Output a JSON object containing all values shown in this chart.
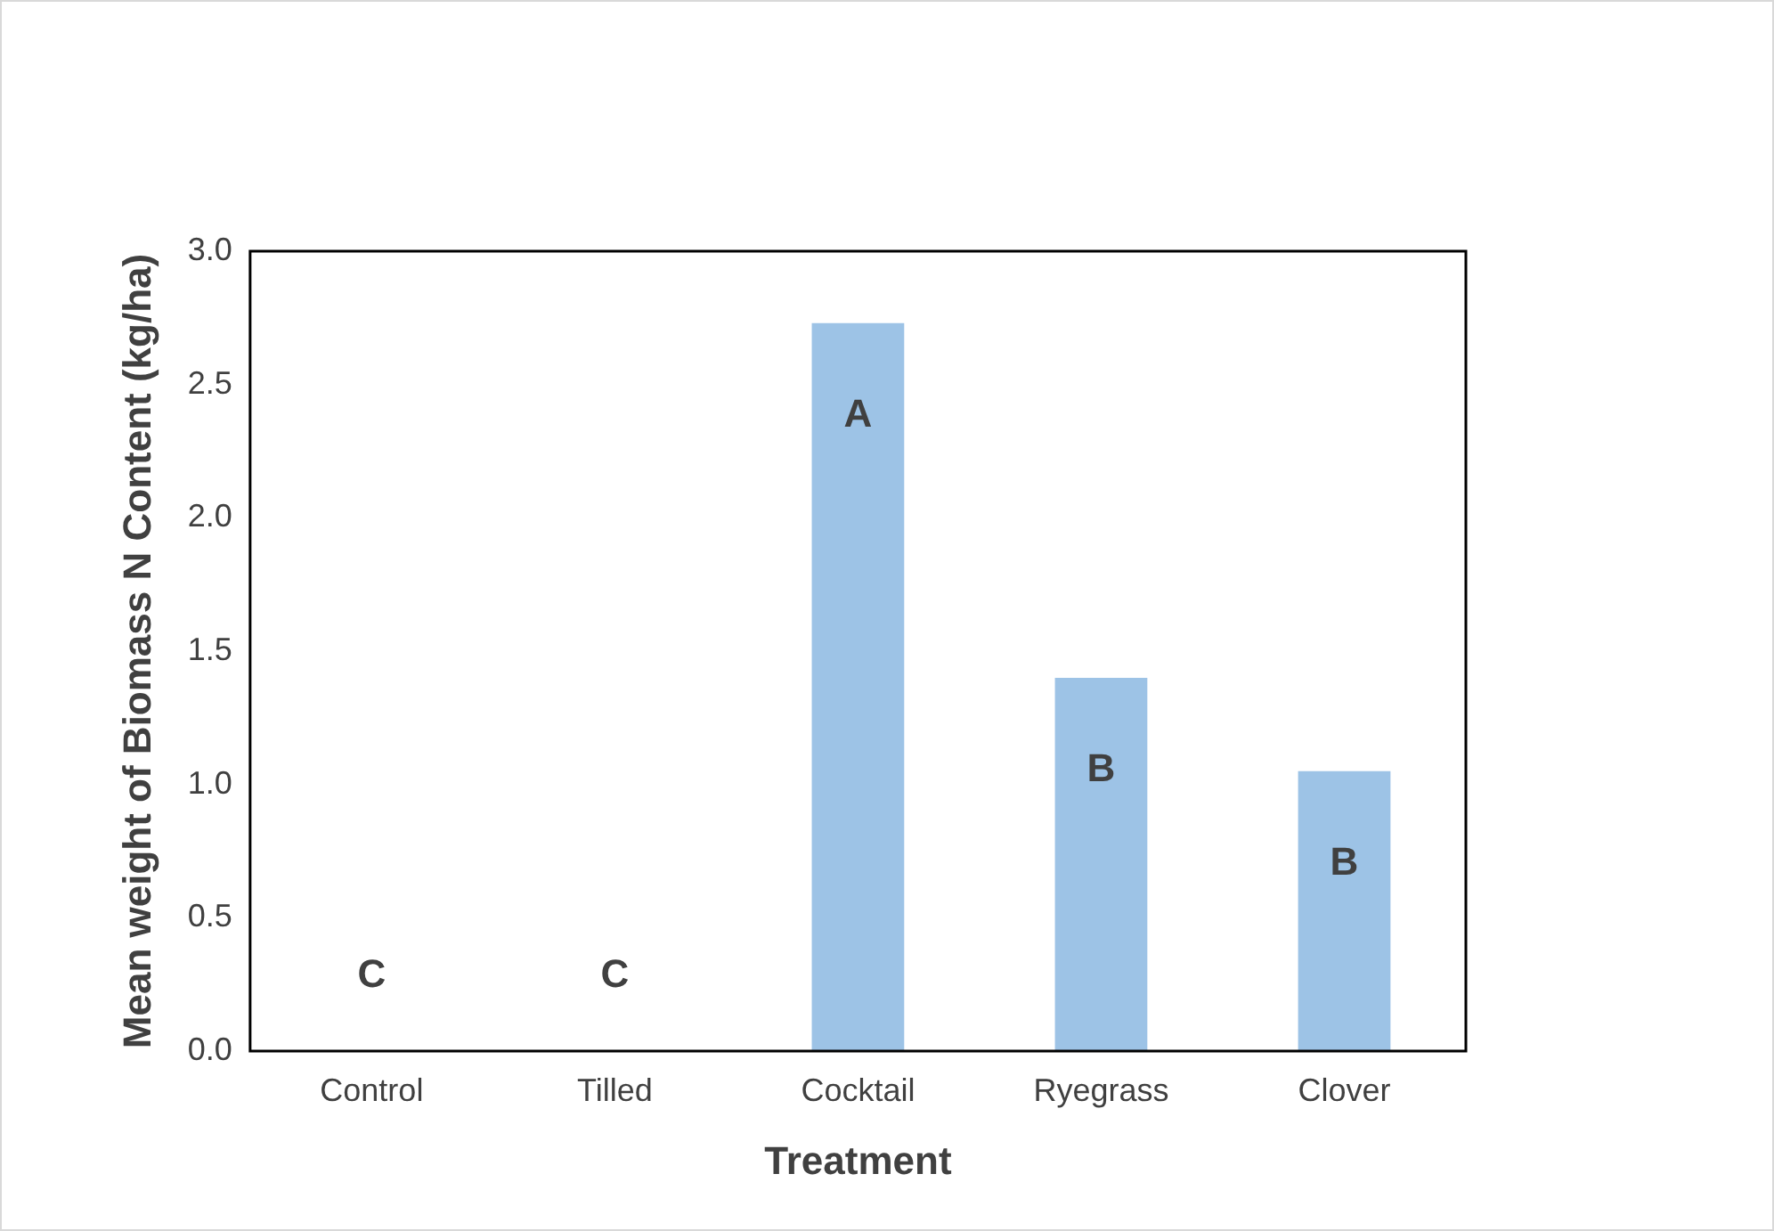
{
  "chart_data": {
    "type": "bar",
    "xlabel": "Treatment",
    "ylabel": "Mean weight of Biomass N Content (kg/ha)",
    "categories": [
      "Control",
      "Tilled",
      "Cocktail",
      "Ryegrass",
      "Clover"
    ],
    "values": [
      0,
      0,
      2.73,
      1.4,
      1.05
    ],
    "color": "#9dc3e6",
    "ylim": [
      0,
      3
    ],
    "yticks": [
      {
        "value": 0,
        "label": "0.0"
      },
      {
        "value": 0.5,
        "label": "0.5"
      },
      {
        "value": 1,
        "label": "1.0"
      },
      {
        "value": 1.5,
        "label": "1.5"
      },
      {
        "value": 2,
        "label": "2.0"
      },
      {
        "value": 2.5,
        "label": "2.5"
      },
      {
        "value": 3,
        "label": "3.0"
      }
    ],
    "annotations": [
      {
        "text": "C",
        "x": "Control",
        "y": 0
      },
      {
        "text": "C",
        "x": "Tilled",
        "y": 0
      },
      {
        "text": "A",
        "x": "Cocktail",
        "y": 2.73
      },
      {
        "text": "B",
        "x": "Ryegrass",
        "y": 1.4
      },
      {
        "text": "B",
        "x": "Clover",
        "y": 1.05
      }
    ],
    "grid": false,
    "legend": false
  }
}
